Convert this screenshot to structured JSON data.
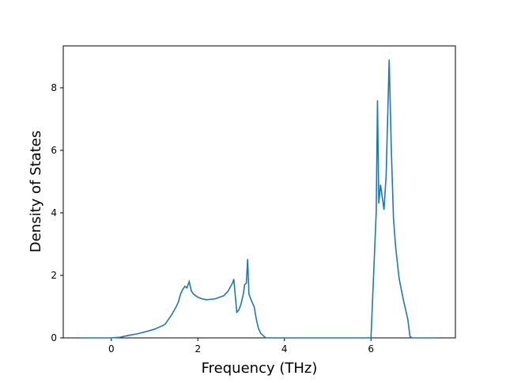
{
  "chart_data": {
    "type": "line",
    "xlabel": "Frequency (THz)",
    "ylabel": "Density of States",
    "xlim": [
      -1.11,
      7.95
    ],
    "ylim": [
      0,
      9.34
    ],
    "xticks": [
      0,
      2,
      4,
      6
    ],
    "yticks": [
      0,
      2,
      4,
      6,
      8
    ],
    "series": [
      {
        "color": "#1f77b4",
        "x": [
          -0.7,
          0,
          0.2,
          0.4,
          0.6,
          0.8,
          1.0,
          1.2,
          1.25,
          1.3,
          1.4,
          1.5,
          1.55,
          1.6,
          1.65,
          1.7,
          1.75,
          1.8,
          1.85,
          1.9,
          2.0,
          2.1,
          2.2,
          2.4,
          2.6,
          2.7,
          2.8,
          2.83,
          2.9,
          2.95,
          3.0,
          3.05,
          3.08,
          3.12,
          3.15,
          3.18,
          3.25,
          3.3,
          3.35,
          3.4,
          3.45,
          3.55,
          3.6,
          6.0,
          6.12,
          6.15,
          6.18,
          6.22,
          6.27,
          6.3,
          6.35,
          6.42,
          6.47,
          6.52,
          6.57,
          6.65,
          6.75,
          6.85,
          6.9,
          6.95,
          7.54
        ],
        "values": [
          0,
          0,
          0.02,
          0.08,
          0.13,
          0.2,
          0.28,
          0.4,
          0.45,
          0.55,
          0.75,
          1.0,
          1.15,
          1.4,
          1.55,
          1.65,
          1.6,
          1.8,
          1.5,
          1.4,
          1.3,
          1.25,
          1.22,
          1.25,
          1.35,
          1.5,
          1.75,
          1.88,
          0.82,
          0.9,
          1.1,
          1.4,
          1.7,
          1.75,
          2.52,
          1.4,
          1.15,
          1.0,
          0.6,
          0.3,
          0.15,
          0.02,
          0,
          0,
          4.0,
          7.6,
          4.3,
          4.9,
          4.4,
          4.1,
          5.2,
          8.9,
          6.0,
          3.8,
          2.9,
          1.9,
          1.2,
          0.6,
          0.05,
          0,
          0
        ]
      }
    ]
  }
}
